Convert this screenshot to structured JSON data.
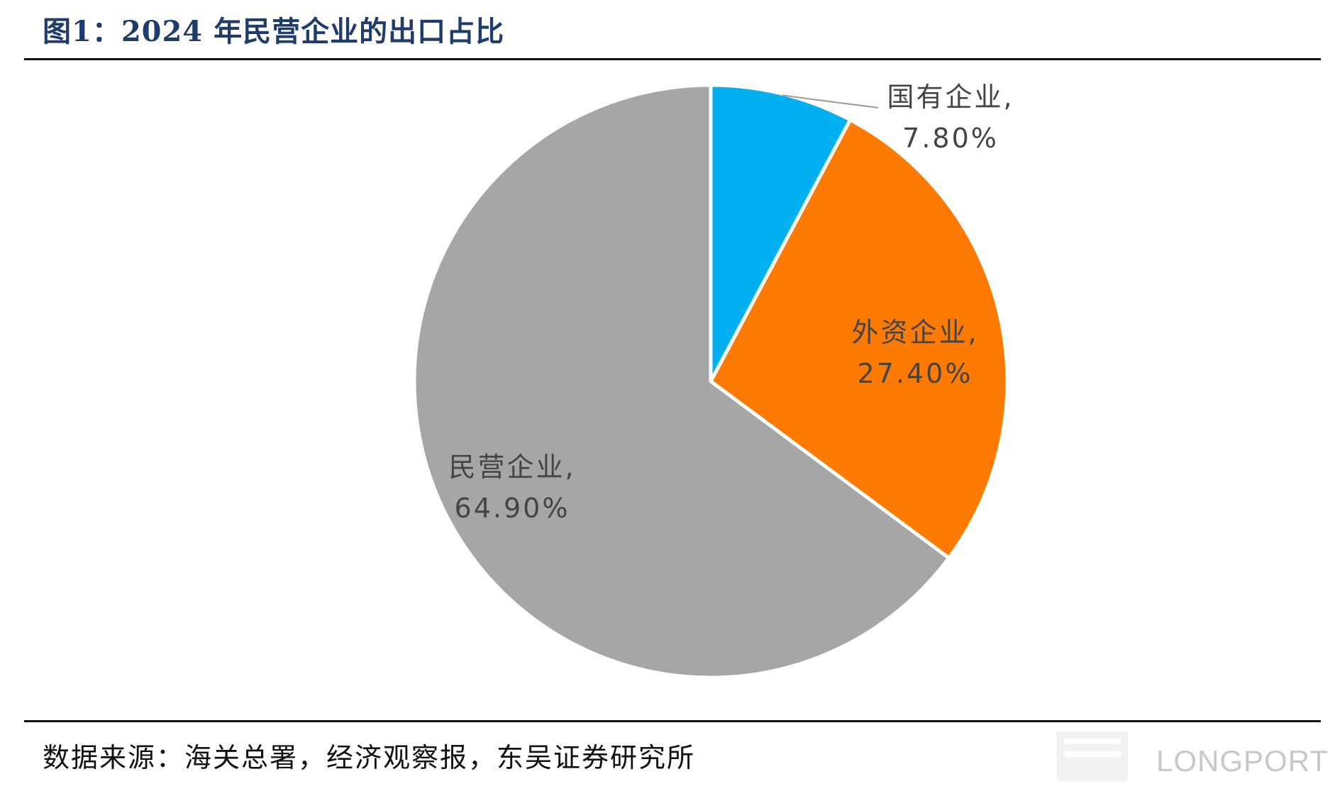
{
  "figure_title": "图1：2024 年民营企业的出口占比",
  "source_note": "数据来源：海关总署，经济观察报，东吴证券研究所",
  "watermark": "LONGPORT",
  "chart_data": {
    "type": "pie",
    "title": "",
    "slices": [
      {
        "label": "国有企业,",
        "value": 7.8,
        "value_label": "7.80%",
        "color": "#00b0f0"
      },
      {
        "label": "外资企业,",
        "value": 27.4,
        "value_label": "27.40%",
        "color": "#ff7a00"
      },
      {
        "label": "民营企业,",
        "value": 64.9,
        "value_label": "64.90%",
        "color": "#a6a6a6"
      }
    ],
    "start_angle_deg": 0,
    "direction": "clockwise",
    "slice_border_color": "#ffffff"
  }
}
